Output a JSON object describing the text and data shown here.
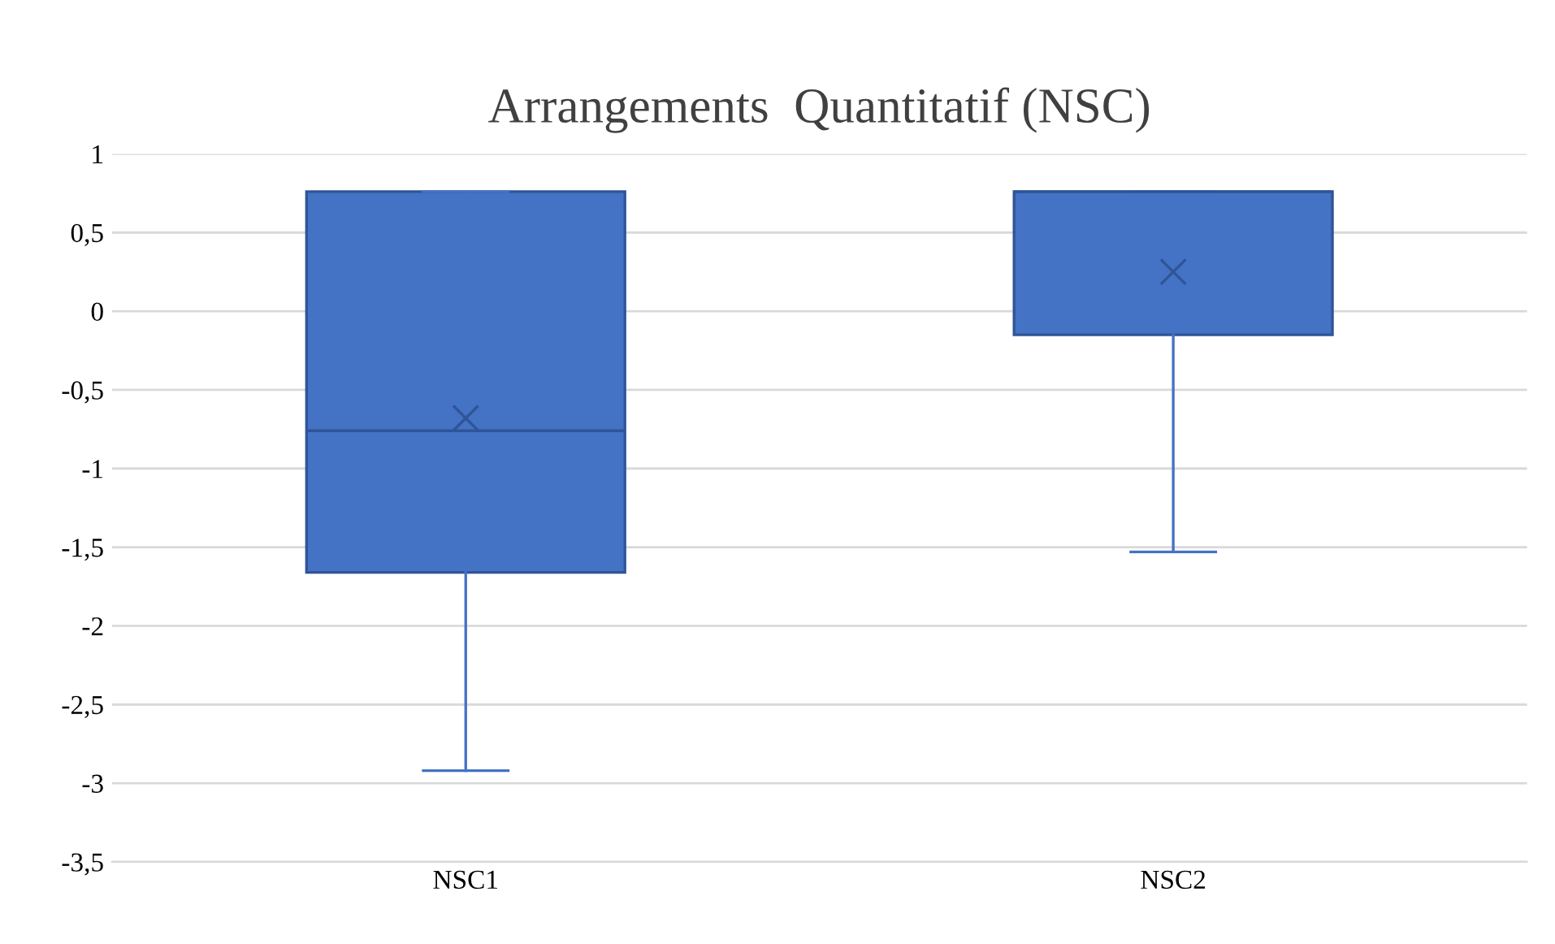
{
  "chart_data": {
    "type": "box",
    "title": "Arrangements  Quantitatif (NSC)",
    "categories": [
      "NSC1",
      "NSC2"
    ],
    "boxes": [
      {
        "low": -2.92,
        "q1": -1.66,
        "median": -0.76,
        "q3": 0.76,
        "high": 0.76,
        "mean": -0.68
      },
      {
        "low": -1.53,
        "q1": -0.15,
        "median": 0.76,
        "q3": 0.76,
        "high": 0.76,
        "mean": 0.25
      }
    ],
    "color": "#4472c4",
    "ylim": [
      -3.5,
      1
    ],
    "yticks": [
      {
        "value": -3.5,
        "label": "-3,5"
      },
      {
        "value": -3,
        "label": "-3"
      },
      {
        "value": -2.5,
        "label": "-2,5"
      },
      {
        "value": -2,
        "label": "-2"
      },
      {
        "value": -1.5,
        "label": "-1,5"
      },
      {
        "value": -1,
        "label": "-1"
      },
      {
        "value": -0.5,
        "label": "-0,5"
      },
      {
        "value": 0,
        "label": "0"
      },
      {
        "value": 0.5,
        "label": "0,5"
      },
      {
        "value": 1,
        "label": "1"
      }
    ],
    "grid": "y"
  }
}
